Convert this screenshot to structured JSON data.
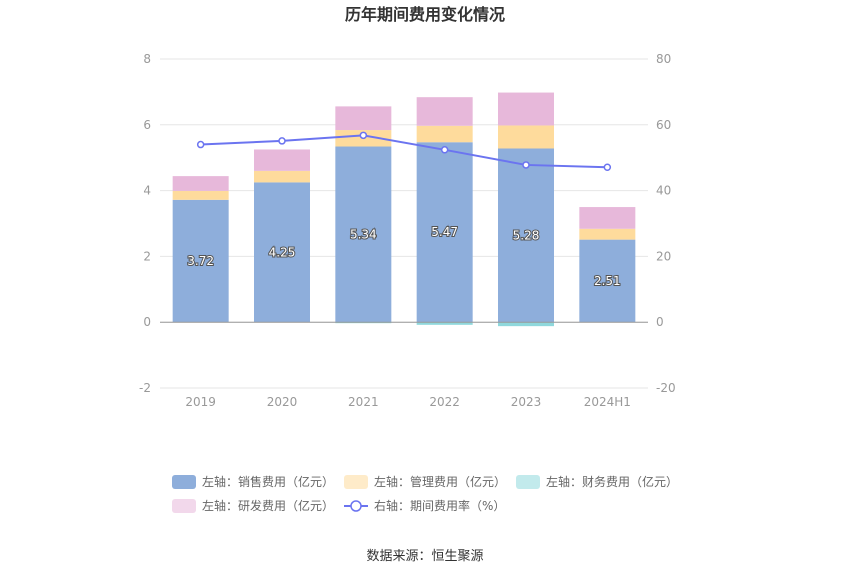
{
  "chart_data": {
    "type": "bar",
    "title": "历年期间费用变化情况",
    "categories": [
      "2019",
      "2020",
      "2021",
      "2022",
      "2023",
      "2024H1"
    ],
    "left_axis": {
      "ticks": [
        "8",
        "6",
        "4",
        "2",
        "0",
        "-2"
      ],
      "ylim": [
        -2,
        8
      ]
    },
    "right_axis": {
      "ticks": [
        "80",
        "60",
        "40",
        "20",
        "0",
        "-20"
      ],
      "ylim": [
        -20,
        80
      ]
    },
    "stacked": true,
    "series": [
      {
        "name": "左轴：销售费用（亿元）",
        "axis": "left",
        "type": "bar",
        "color": "#8eaedb",
        "values": [
          3.72,
          4.25,
          5.34,
          5.47,
          5.28,
          2.51
        ],
        "labels": [
          "3.72",
          "4.25",
          "5.34",
          "5.47",
          "5.28",
          "2.51"
        ]
      },
      {
        "name": "左轴：管理费用（亿元）",
        "axis": "left",
        "type": "bar",
        "color": "#fedb9c",
        "values": [
          0.27,
          0.35,
          0.5,
          0.5,
          0.7,
          0.33
        ]
      },
      {
        "name": "左轴：财务费用（亿元）",
        "axis": "left",
        "type": "bar",
        "color": "#8fd8dc",
        "values": [
          0.0,
          0.0,
          -0.03,
          -0.08,
          -0.12,
          0.0
        ]
      },
      {
        "name": "左轴：研发费用（亿元）",
        "axis": "left",
        "type": "bar",
        "color": "#e7b8da",
        "values": [
          0.45,
          0.65,
          0.72,
          0.87,
          1.0,
          0.66
        ]
      },
      {
        "name": "右轴：期间费用率（%）",
        "axis": "right",
        "type": "line",
        "color": "#6b74f0",
        "values": [
          54.0,
          55.1,
          56.8,
          52.4,
          47.8,
          47.1
        ]
      }
    ],
    "grid": true,
    "legend_position": "bottom"
  },
  "source_text": "数据来源：恒生聚源"
}
